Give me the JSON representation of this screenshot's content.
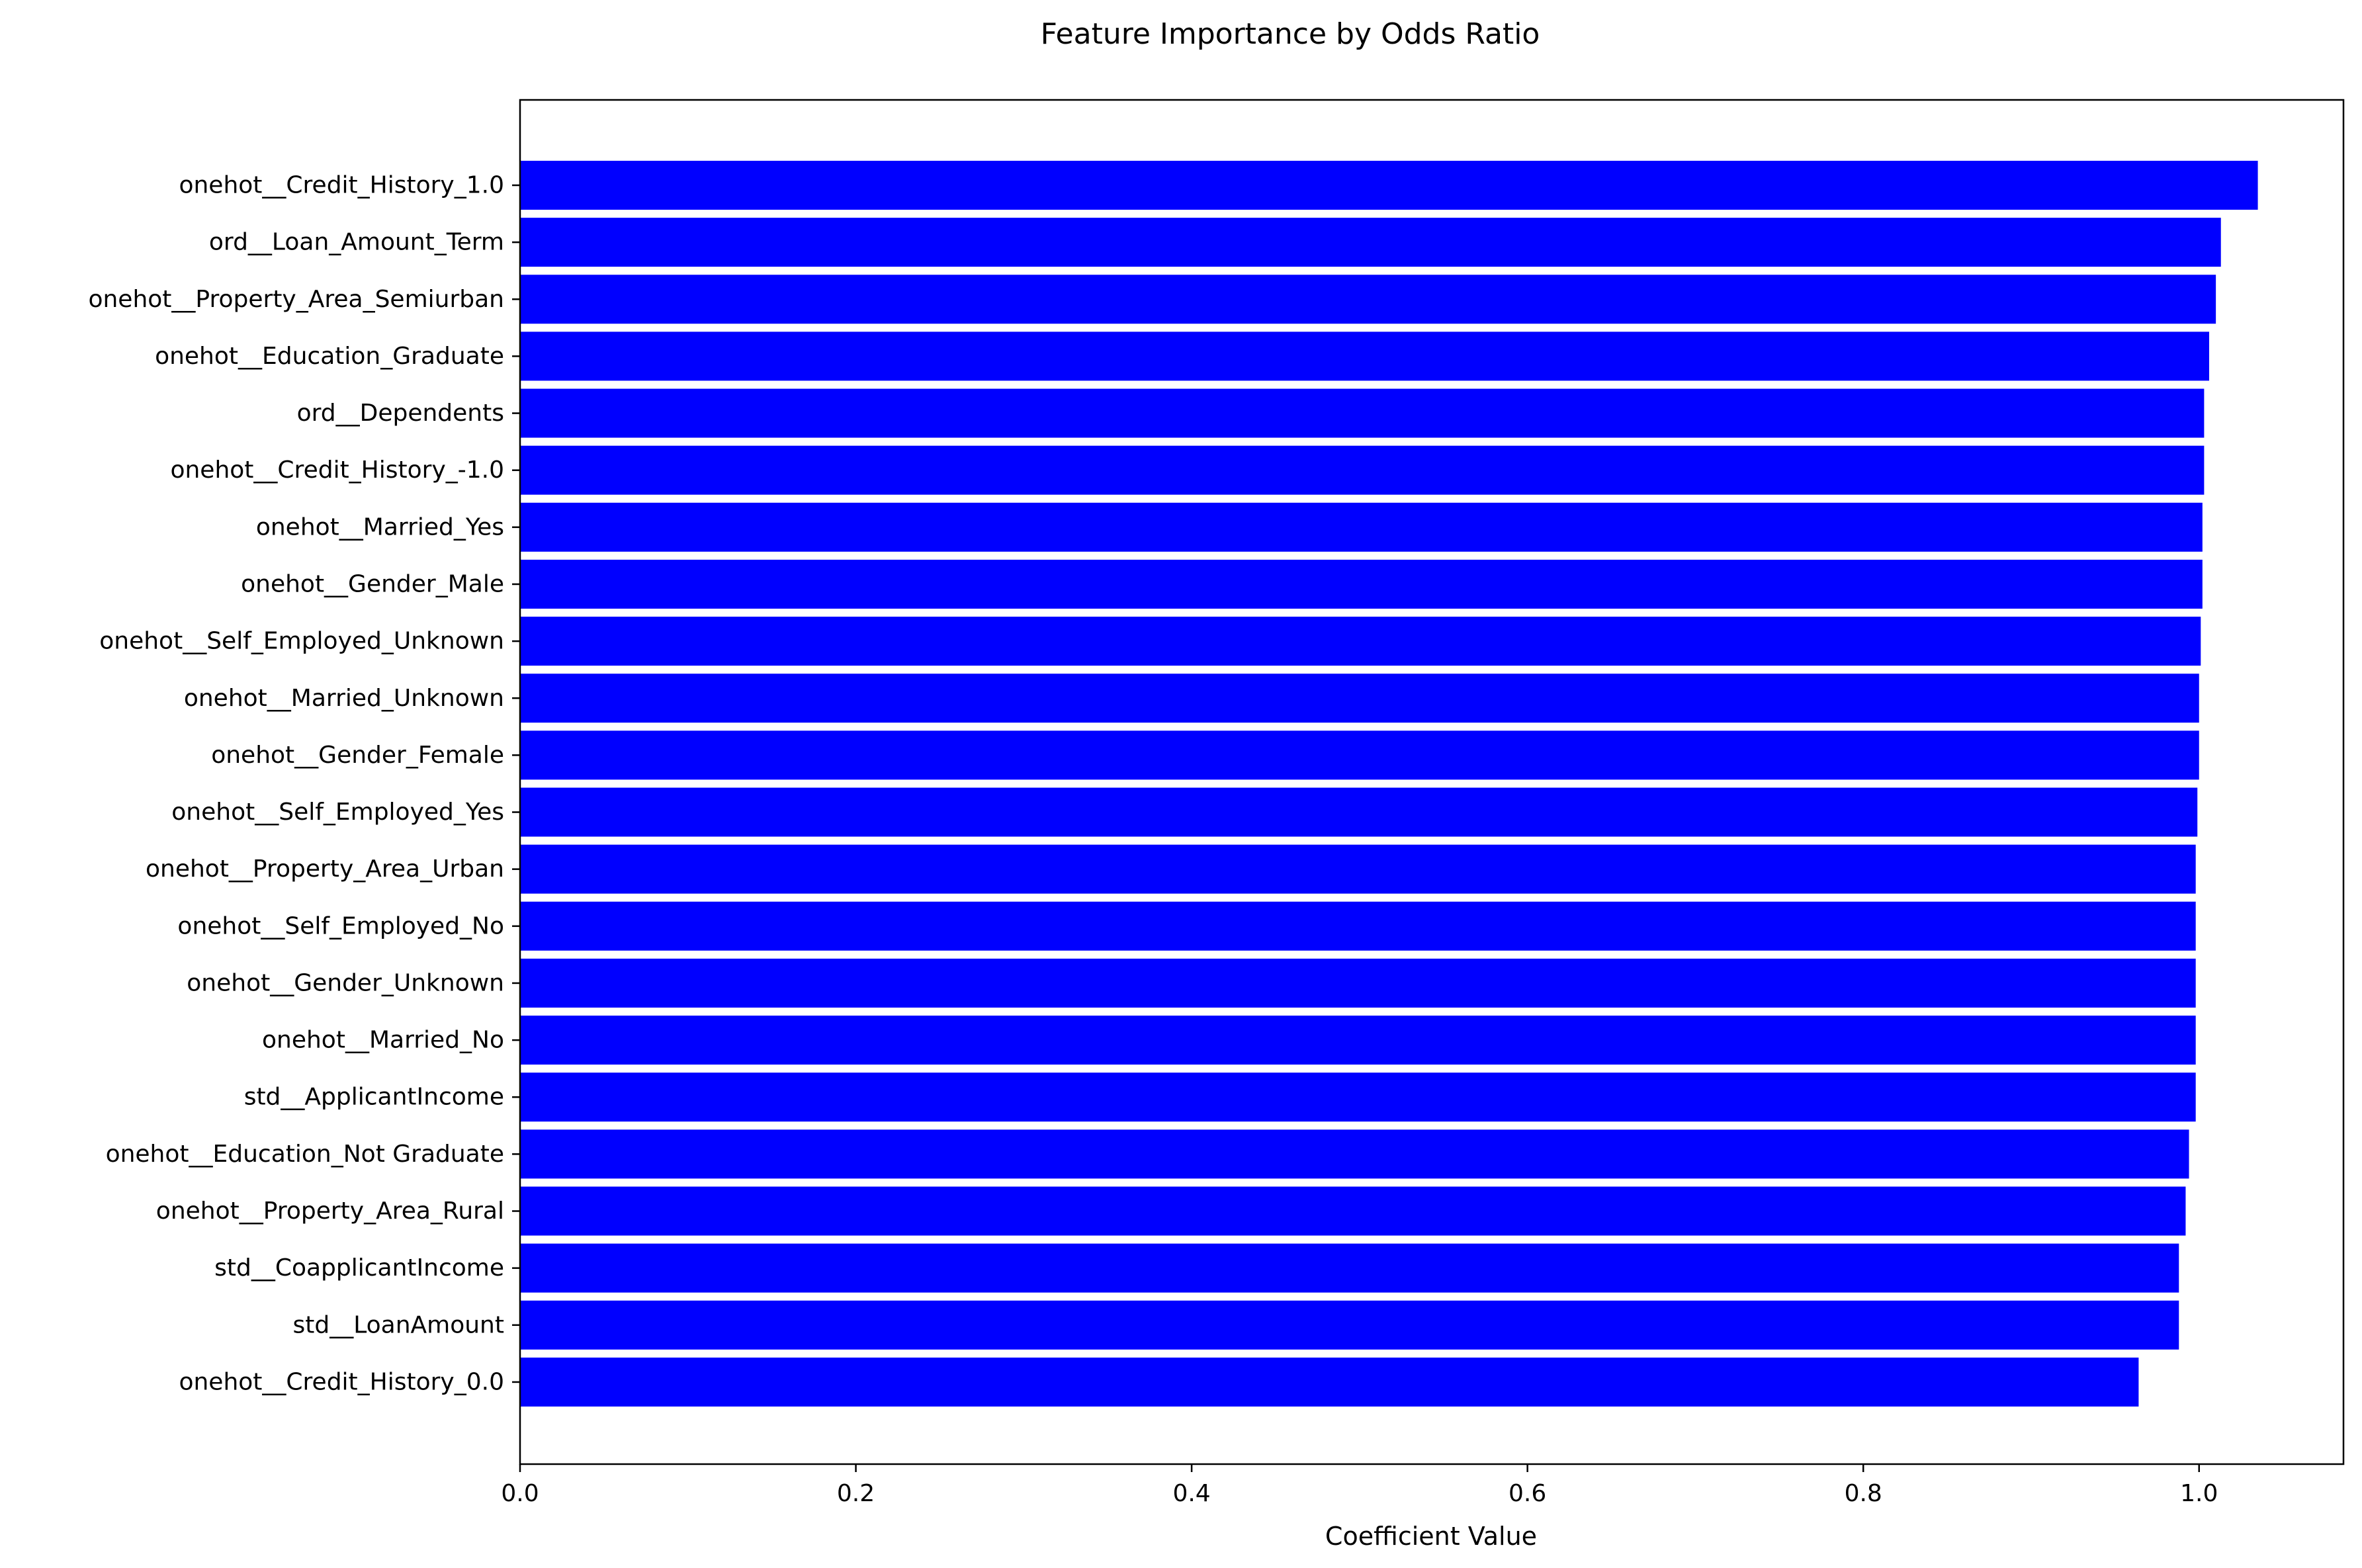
{
  "chart_data": {
    "type": "bar",
    "orientation": "horizontal",
    "title": "Feature Importance by Odds Ratio",
    "xlabel": "Coefficient Value",
    "ylabel": "",
    "xlim": [
      0,
      1.086
    ],
    "xticks": [
      0.0,
      0.2,
      0.4,
      0.6,
      0.8,
      1.0
    ],
    "xtick_labels": [
      "0.0",
      "0.2",
      "0.4",
      "0.6",
      "0.8",
      "1.0"
    ],
    "grid": false,
    "bar_color": "#0000ff",
    "categories": [
      "onehot__Credit_History_1.0",
      "ord__Loan_Amount_Term",
      "onehot__Property_Area_Semiurban",
      "onehot__Education_Graduate",
      "ord__Dependents",
      "onehot__Credit_History_-1.0",
      "onehot__Married_Yes",
      "onehot__Gender_Male",
      "onehot__Self_Employed_Unknown",
      "onehot__Married_Unknown",
      "onehot__Gender_Female",
      "onehot__Self_Employed_Yes",
      "onehot__Property_Area_Urban",
      "onehot__Self_Employed_No",
      "onehot__Gender_Unknown",
      "onehot__Married_No",
      "std__ApplicantIncome",
      "onehot__Education_Not Graduate",
      "onehot__Property_Area_Rural",
      "std__CoapplicantIncome",
      "std__LoanAmount",
      "onehot__Credit_History_0.0"
    ],
    "values": [
      1.035,
      1.013,
      1.01,
      1.006,
      1.003,
      1.003,
      1.002,
      1.002,
      1.001,
      1.0,
      1.0,
      0.999,
      0.998,
      0.998,
      0.998,
      0.998,
      0.998,
      0.994,
      0.992,
      0.988,
      0.988,
      0.964
    ]
  }
}
